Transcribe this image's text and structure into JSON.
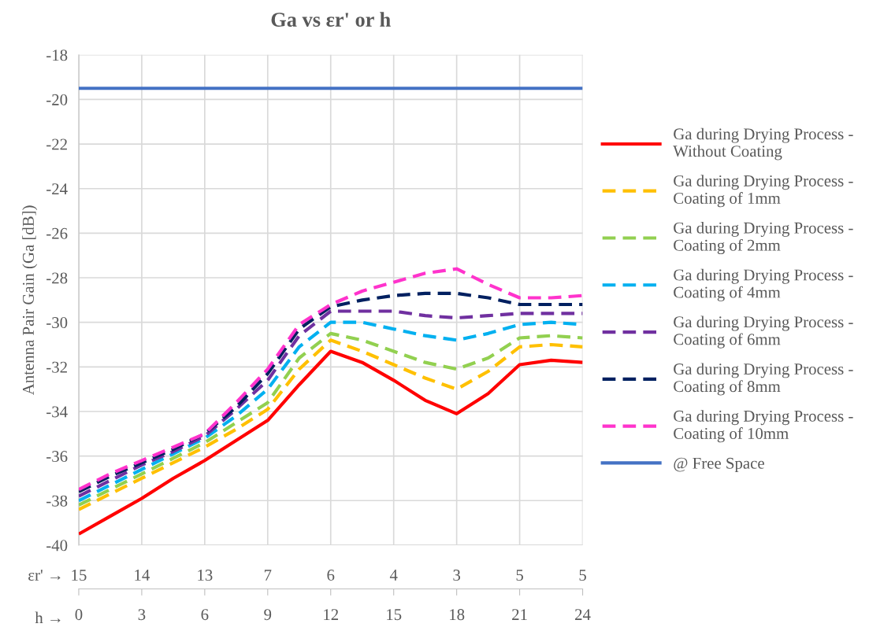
{
  "chart_data": {
    "type": "line",
    "title": "Ga vs εr' or h",
    "xlabel": "h →",
    "ylabel": "Antenna Pair Gain (Ga [dB])",
    "annotations": [
      "εr' →",
      "15",
      "14",
      "13",
      "7",
      "6",
      "4",
      "3",
      "5",
      "5"
    ],
    "x": [
      0,
      1.5,
      3,
      4.5,
      6,
      7.5,
      9,
      10.5,
      12,
      13.5,
      15,
      16.5,
      18,
      19.5,
      21,
      22.5,
      24
    ],
    "xlim": [
      0,
      24
    ],
    "xticks": [
      0,
      3,
      6,
      9,
      12,
      15,
      18,
      21,
      24
    ],
    "ylim": [
      -40,
      -18
    ],
    "yticks": [
      -40,
      -38,
      -36,
      -34,
      -32,
      -30,
      -28,
      -26,
      -24,
      -22,
      -20,
      -18
    ],
    "grid": true,
    "legend": "right",
    "marker": "none",
    "series": [
      {
        "name": "Ga during Drying Process - Without Coating",
        "color": "#ff0000",
        "line_style": "solid",
        "values": [
          -39.5,
          -38.7,
          -37.9,
          -37.0,
          -36.2,
          -35.3,
          -34.4,
          -32.8,
          -31.3,
          -31.8,
          -32.6,
          -33.5,
          -34.1,
          -33.2,
          -31.9,
          -31.7,
          -31.8
        ]
      },
      {
        "name": "Ga during Drying Process - Coating of 1mm",
        "color": "#ffc000",
        "line_style": "dashed",
        "values": [
          -38.4,
          -37.7,
          -37.0,
          -36.3,
          -35.6,
          -34.8,
          -33.9,
          -32.1,
          -30.8,
          -31.3,
          -31.9,
          -32.5,
          -33.0,
          -32.2,
          -31.1,
          -31.0,
          -31.1
        ]
      },
      {
        "name": "Ga during Drying Process - Coating of 2mm",
        "color": "#92d050",
        "line_style": "dashed",
        "values": [
          -38.2,
          -37.5,
          -36.8,
          -36.1,
          -35.4,
          -34.5,
          -33.6,
          -31.6,
          -30.5,
          -30.8,
          -31.3,
          -31.8,
          -32.1,
          -31.6,
          -30.7,
          -30.6,
          -30.7
        ]
      },
      {
        "name": "Ga during Drying Process - Coating of 4mm",
        "color": "#00b0f0",
        "line_style": "dashed",
        "values": [
          -38.0,
          -37.3,
          -36.6,
          -35.9,
          -35.2,
          -34.2,
          -33.0,
          -31.1,
          -30.0,
          -30.0,
          -30.3,
          -30.6,
          -30.8,
          -30.5,
          -30.1,
          -30.0,
          -30.1
        ]
      },
      {
        "name": "Ga during Drying Process - Coating of 6mm",
        "color": "#7030a0",
        "line_style": "dashed",
        "values": [
          -37.8,
          -37.1,
          -36.4,
          -35.8,
          -35.1,
          -33.9,
          -32.6,
          -30.6,
          -29.5,
          -29.5,
          -29.5,
          -29.7,
          -29.8,
          -29.7,
          -29.6,
          -29.6,
          -29.6
        ]
      },
      {
        "name": "Ga during Drying Process - Coating of 8mm",
        "color": "#002060",
        "line_style": "dashed",
        "values": [
          -37.6,
          -36.9,
          -36.3,
          -35.7,
          -35.0,
          -33.8,
          -32.3,
          -30.3,
          -29.3,
          -29.0,
          -28.8,
          -28.7,
          -28.7,
          -28.9,
          -29.2,
          -29.2,
          -29.2
        ]
      },
      {
        "name": "Ga during Drying Process - Coating of 10mm",
        "color": "#ff33cc",
        "line_style": "dashed",
        "values": [
          -37.5,
          -36.8,
          -36.2,
          -35.6,
          -35.0,
          -33.6,
          -32.1,
          -30.1,
          -29.2,
          -28.6,
          -28.2,
          -27.8,
          -27.6,
          -28.3,
          -28.9,
          -28.9,
          -28.8
        ]
      },
      {
        "name": "@ Free Space",
        "color": "#4472c4",
        "line_style": "solid",
        "values": [
          -19.5,
          -19.5,
          -19.5,
          -19.5,
          -19.5,
          -19.5,
          -19.5,
          -19.5,
          -19.5,
          -19.5,
          -19.5,
          -19.5,
          -19.5,
          -19.5,
          -19.5,
          -19.5,
          -19.5
        ]
      }
    ]
  }
}
